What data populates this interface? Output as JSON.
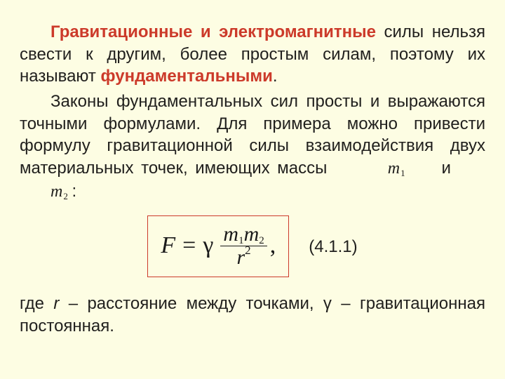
{
  "para1": {
    "emph1": "Гравитационные и электромагнитные",
    "t1": " силы нельзя свести к другим, более простым силам, поэтому их называют ",
    "emph2": "фундаментальными",
    "t2": "."
  },
  "para2": {
    "t1": "Законы фундаментальных сил просты и выражаются точными формулами. Для примера можно привести формулу гравитационной силы взаимодействия двух материальных точек, имеющих массы ",
    "m1": "m",
    "m1sub": "1",
    "and": " и ",
    "m2": "m",
    "m2sub": "2",
    "colon": " :"
  },
  "formula": {
    "F": "F",
    "eq": "=",
    "gamma": "γ",
    "num_m1": "m",
    "num_m1sub": "1",
    "num_m2": "m",
    "num_m2sub": "2",
    "den_r": "r",
    "den_exp": "2",
    "comma": ",",
    "eqnum": "(4.1.1)"
  },
  "para3": {
    "t1": "где ",
    "r": "r",
    "t2": " – расстояние между точками,  γ – гравитационная постоянная."
  }
}
